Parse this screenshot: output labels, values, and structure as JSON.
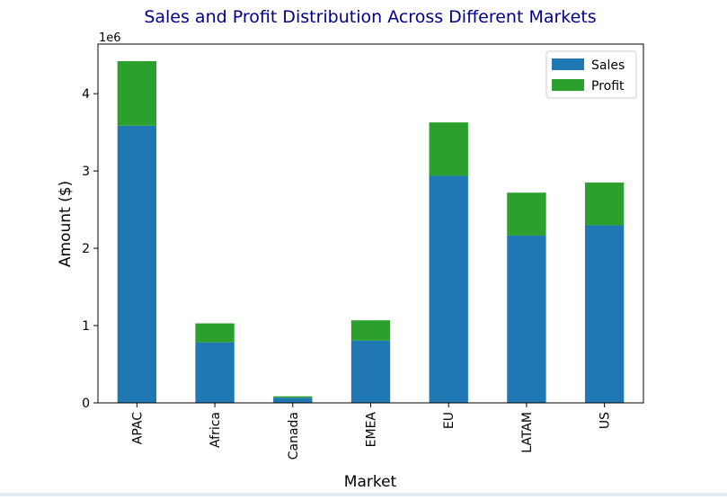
{
  "chart_data": {
    "type": "bar",
    "stacked": true,
    "title": "Sales and Profit Distribution Across Different Markets",
    "xlabel": "Market",
    "ylabel": "Amount ($)",
    "y_offset_label": "1e6",
    "categories": [
      "APAC",
      "Africa",
      "Canada",
      "EMEA",
      "EU",
      "LATAM",
      "US"
    ],
    "series": [
      {
        "name": "Sales",
        "color": "#1f77b4",
        "values": [
          3585744,
          783773,
          66932,
          806161,
          2938089,
          2164605,
          2297201
        ]
      },
      {
        "name": "Profit",
        "color": "#2ca02c",
        "values": [
          835000,
          245000,
          18000,
          262000,
          690000,
          555000,
          553000
        ]
      }
    ],
    "y_ticks": [
      0,
      1,
      2,
      3,
      4
    ],
    "y_tick_labels": [
      "0",
      "1",
      "2",
      "3",
      "4"
    ],
    "ylim": [
      0,
      4642000
    ],
    "legend_position": "upper-right",
    "title_color": "#00008b",
    "grid": false
  }
}
